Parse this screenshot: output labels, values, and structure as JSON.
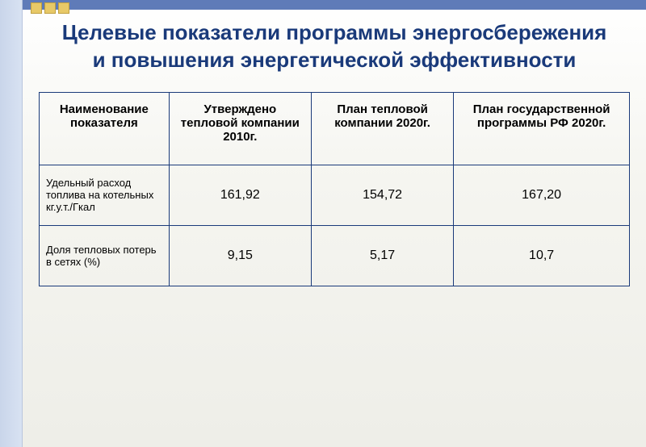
{
  "slide": {
    "title": "Целевые показатели программы энергосбережения и повышения энергетической эффективности",
    "background_gradient_top": "#ffffff",
    "background_gradient_bottom": "#eeeee8",
    "left_stripe_color": "#d8e2f2",
    "top_band_color": "#5f7bb8",
    "corner_square_color": "#e8c968",
    "title_color": "#1a3a7a",
    "title_fontsize": 26,
    "border_color": "#1a3a7a"
  },
  "table": {
    "type": "table",
    "columns": [
      "Наименование показателя",
      "Утверждено тепловой компании 2010г.",
      "План тепловой компании 2020г.",
      "План государственной программы РФ 2020г."
    ],
    "rows": [
      {
        "label": "Удельный расход топлива на котельных кг.у.т./Гкал",
        "values": [
          "161,92",
          "154,72",
          "167,20"
        ]
      },
      {
        "label": "Доля тепловых потерь в сетях (%)",
        "values": [
          "9,15",
          "5,17",
          "10,7"
        ]
      }
    ],
    "header_fontsize": 15,
    "cell_fontsize": 16,
    "label_fontsize": 13
  }
}
